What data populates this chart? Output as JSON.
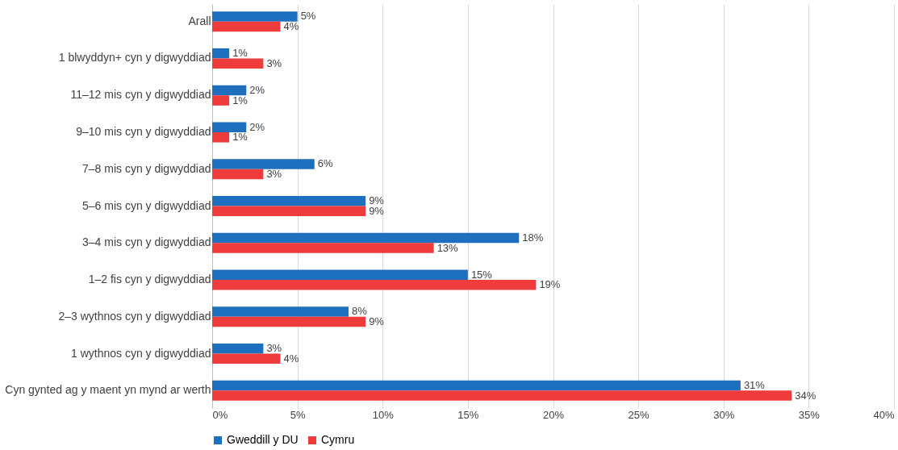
{
  "chart_data": {
    "type": "bar",
    "orientation": "horizontal",
    "categories": [
      "Arall",
      "1 blwyddyn+ cyn y digwyddiad",
      "11–12 mis cyn y digwyddiad",
      "9–10 mis cyn y digwyddiad",
      "7–8 mis cyn y digwyddiad",
      "5–6 mis cyn y digwyddiad",
      "3–4 mis cyn y digwyddiad",
      "1–2 fis cyn y digwyddiad",
      "2–3 wythnos cyn y digwyddiad",
      "1 wythnos cyn y digwyddiad",
      "Cyn gynted ag y maent yn mynd ar werth"
    ],
    "series": [
      {
        "name": "Gweddill y DU",
        "color": "#1f6fbf",
        "values": [
          5,
          1,
          2,
          2,
          6,
          9,
          18,
          15,
          8,
          3,
          31
        ],
        "value_labels": [
          "5%",
          "1%",
          "2%",
          "2%",
          "6%",
          "9%",
          "18%",
          "15%",
          "8%",
          "3%",
          "31%"
        ]
      },
      {
        "name": "Cymru",
        "color": "#ee3b3b",
        "values": [
          4,
          3,
          1,
          1,
          3,
          9,
          13,
          19,
          9,
          4,
          34
        ],
        "value_labels": [
          "4%",
          "3%",
          "1%",
          "1%",
          "3%",
          "9%",
          "13%",
          "19%",
          "9%",
          "4%",
          "34%"
        ]
      }
    ],
    "xlim": [
      0,
      40
    ],
    "xticks": [
      {
        "value": 0,
        "label": "0%"
      },
      {
        "value": 5,
        "label": "5%"
      },
      {
        "value": 10,
        "label": "10%"
      },
      {
        "value": 15,
        "label": "15%"
      },
      {
        "value": 20,
        "label": "20%"
      },
      {
        "value": 25,
        "label": "25%"
      },
      {
        "value": 30,
        "label": "30%"
      },
      {
        "value": 35,
        "label": "35%"
      },
      {
        "value": 40,
        "label": "40%"
      }
    ],
    "grid": "x",
    "legend": "bottom"
  }
}
